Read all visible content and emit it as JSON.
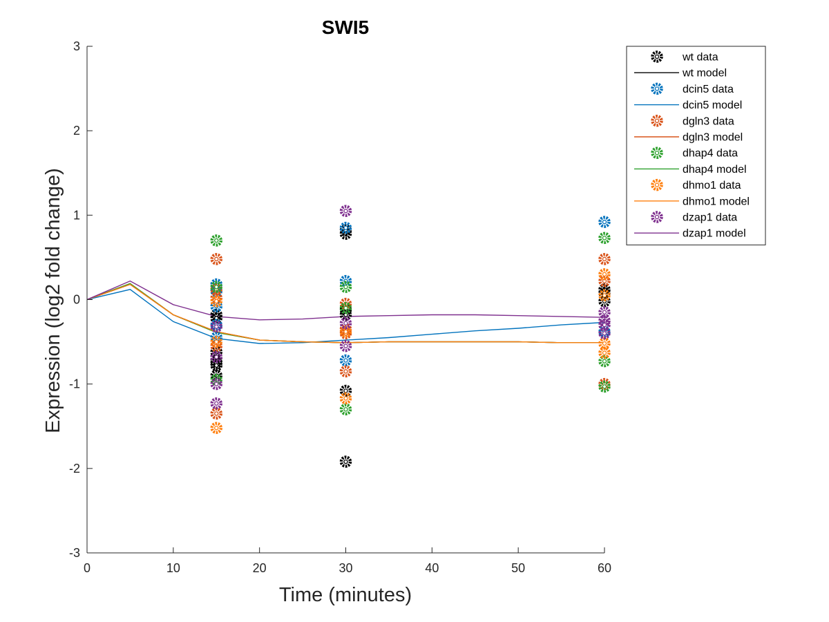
{
  "chart_data": {
    "type": "scatter",
    "title": "SWI5",
    "xlabel": "Time (minutes)",
    "ylabel": "Expression (log2 fold change)",
    "xlim": [
      0,
      60
    ],
    "ylim": [
      -3,
      3
    ],
    "xticks": [
      "0",
      "10",
      "20",
      "30",
      "40",
      "50",
      "60"
    ],
    "yticks": [
      "-3",
      "-2",
      "-1",
      "0",
      "1",
      "2",
      "3"
    ],
    "grid": false,
    "legend_position": "top-right",
    "series": [
      {
        "name": "wt data",
        "kind": "data",
        "color": "#000000",
        "points": [
          [
            15,
            -0.18
          ],
          [
            15,
            -0.22
          ],
          [
            15,
            -0.62
          ],
          [
            15,
            -0.68
          ],
          [
            15,
            -0.72
          ],
          [
            15,
            -0.75
          ],
          [
            15,
            -0.78
          ],
          [
            15,
            -0.9
          ],
          [
            30,
            0.78
          ],
          [
            30,
            0.82
          ],
          [
            30,
            -0.12
          ],
          [
            30,
            -0.18
          ],
          [
            30,
            -1.08
          ],
          [
            30,
            -1.92
          ],
          [
            60,
            0.12
          ],
          [
            60,
            0.08
          ],
          [
            60,
            -0.02
          ]
        ]
      },
      {
        "name": "wt model",
        "kind": "model",
        "color": "#000000",
        "x": [
          0,
          5,
          10,
          15,
          20,
          25,
          30,
          35,
          40,
          45,
          50,
          55,
          60
        ],
        "y": [
          0,
          0.18,
          -0.18,
          -0.38,
          -0.48,
          -0.5,
          -0.51,
          -0.5,
          -0.5,
          -0.5,
          -0.5,
          -0.51,
          -0.51
        ]
      },
      {
        "name": "dcin5 data",
        "kind": "data",
        "color": "#0072BD",
        "points": [
          [
            15,
            0.18
          ],
          [
            15,
            0.1
          ],
          [
            15,
            -0.08
          ],
          [
            15,
            -0.3
          ],
          [
            15,
            -0.45
          ],
          [
            30,
            0.85
          ],
          [
            30,
            0.22
          ],
          [
            30,
            -0.72
          ],
          [
            60,
            0.92
          ],
          [
            60,
            -0.38
          ]
        ]
      },
      {
        "name": "dcin5 model",
        "kind": "model",
        "color": "#0072BD",
        "x": [
          0,
          5,
          10,
          15,
          20,
          25,
          30,
          35,
          40,
          45,
          50,
          55,
          60
        ],
        "y": [
          0,
          0.12,
          -0.26,
          -0.46,
          -0.52,
          -0.51,
          -0.48,
          -0.45,
          -0.41,
          -0.37,
          -0.34,
          -0.3,
          -0.27
        ]
      },
      {
        "name": "dgln3 data",
        "kind": "data",
        "color": "#D95319",
        "points": [
          [
            15,
            0.48
          ],
          [
            15,
            0.12
          ],
          [
            15,
            0.02
          ],
          [
            15,
            -0.55
          ],
          [
            15,
            -1.35
          ],
          [
            30,
            -0.05
          ],
          [
            30,
            -0.35
          ],
          [
            30,
            -0.4
          ],
          [
            30,
            -0.85
          ],
          [
            60,
            0.48
          ],
          [
            60,
            0.22
          ],
          [
            60,
            -1.0
          ]
        ]
      },
      {
        "name": "dgln3 model",
        "kind": "model",
        "color": "#D95319",
        "x": [
          0,
          5,
          10,
          15,
          20,
          25,
          30,
          35,
          40,
          45,
          50,
          55,
          60
        ],
        "y": [
          0,
          0.19,
          -0.18,
          -0.39,
          -0.48,
          -0.5,
          -0.51,
          -0.5,
          -0.5,
          -0.5,
          -0.5,
          -0.51,
          -0.51
        ]
      },
      {
        "name": "dhap4 data",
        "kind": "data",
        "color": "#2CA02C",
        "points": [
          [
            15,
            0.7
          ],
          [
            15,
            0.15
          ],
          [
            15,
            -0.95
          ],
          [
            30,
            0.15
          ],
          [
            30,
            -0.1
          ],
          [
            30,
            -1.3
          ],
          [
            60,
            0.73
          ],
          [
            60,
            -0.73
          ],
          [
            60,
            -1.03
          ]
        ]
      },
      {
        "name": "dhap4 model",
        "kind": "model",
        "color": "#2CA02C",
        "x": [
          0,
          5,
          10,
          15,
          20,
          25,
          30,
          35,
          40,
          45,
          50,
          55,
          60
        ],
        "y": [
          0,
          0.19,
          -0.18,
          -0.39,
          -0.48,
          -0.5,
          -0.51,
          -0.5,
          -0.5,
          -0.5,
          -0.5,
          -0.51,
          -0.51
        ]
      },
      {
        "name": "dhmo1 data",
        "kind": "data",
        "color": "#FF7F0E",
        "points": [
          [
            15,
            -0.02
          ],
          [
            15,
            -0.5
          ],
          [
            15,
            -1.52
          ],
          [
            30,
            -0.38
          ],
          [
            30,
            -1.17
          ],
          [
            60,
            0.3
          ],
          [
            60,
            0.05
          ],
          [
            60,
            -0.52
          ],
          [
            60,
            -0.63
          ]
        ]
      },
      {
        "name": "dhmo1 model",
        "kind": "model",
        "color": "#FF7F0E",
        "x": [
          0,
          5,
          10,
          15,
          20,
          25,
          30,
          35,
          40,
          45,
          50,
          55,
          60
        ],
        "y": [
          0,
          0.18,
          -0.18,
          -0.38,
          -0.48,
          -0.5,
          -0.51,
          -0.5,
          -0.5,
          -0.5,
          -0.5,
          -0.51,
          -0.51
        ]
      },
      {
        "name": "dzap1 data",
        "kind": "data",
        "color": "#7E2F8E",
        "points": [
          [
            15,
            -0.32
          ],
          [
            15,
            -0.68
          ],
          [
            15,
            -1.0
          ],
          [
            15,
            -1.23
          ],
          [
            30,
            1.05
          ],
          [
            30,
            -0.28
          ],
          [
            30,
            -0.55
          ],
          [
            60,
            -0.15
          ],
          [
            60,
            -0.25
          ],
          [
            60,
            -0.3
          ],
          [
            60,
            -0.4
          ]
        ]
      },
      {
        "name": "dzap1 model",
        "kind": "model",
        "color": "#7E2F8E",
        "x": [
          0,
          5,
          10,
          15,
          20,
          25,
          30,
          35,
          40,
          45,
          50,
          55,
          60
        ],
        "y": [
          0,
          0.22,
          -0.06,
          -0.2,
          -0.24,
          -0.23,
          -0.2,
          -0.19,
          -0.18,
          -0.18,
          -0.19,
          -0.2,
          -0.21
        ]
      }
    ]
  }
}
